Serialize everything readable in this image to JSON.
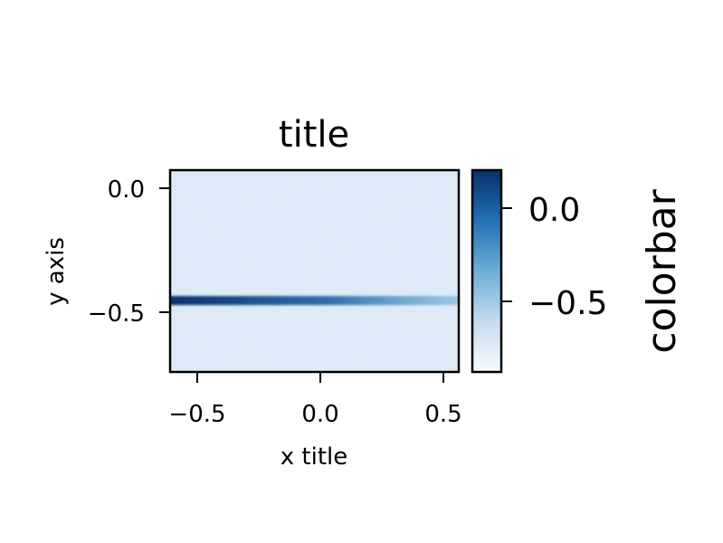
{
  "chart_data": {
    "type": "heatmap",
    "title": "title",
    "xlabel": "x title",
    "ylabel": "y axis",
    "xlim": [
      -0.6,
      0.55
    ],
    "ylim": [
      -0.75,
      0.07
    ],
    "x_ticks": [
      "−0.5",
      "0.0",
      "0.5"
    ],
    "x_tick_values": [
      -0.5,
      0.0,
      0.5
    ],
    "y_ticks": [
      "0.0",
      "−0.5"
    ],
    "y_tick_values": [
      0.0,
      -0.5
    ],
    "colormap": "Blues",
    "colorbar": {
      "label": "colorbar",
      "ticks": [
        "0.0",
        "−0.5"
      ],
      "tick_values": [
        0.0,
        -0.5
      ],
      "range": [
        -0.88,
        0.18
      ]
    },
    "feature": {
      "description": "dense horizontal band",
      "y": -0.46,
      "x_range": [
        -0.6,
        0.55
      ],
      "intensity_start": 1.0,
      "intensity_end": 0.3
    },
    "background_level": 0.15,
    "grid": false
  },
  "colors": {
    "cmap_low": "#f7fbff",
    "cmap_mid": "#6baed6",
    "cmap_high": "#08306b",
    "background": "#dde9f6",
    "band": "#0d4a8f"
  }
}
